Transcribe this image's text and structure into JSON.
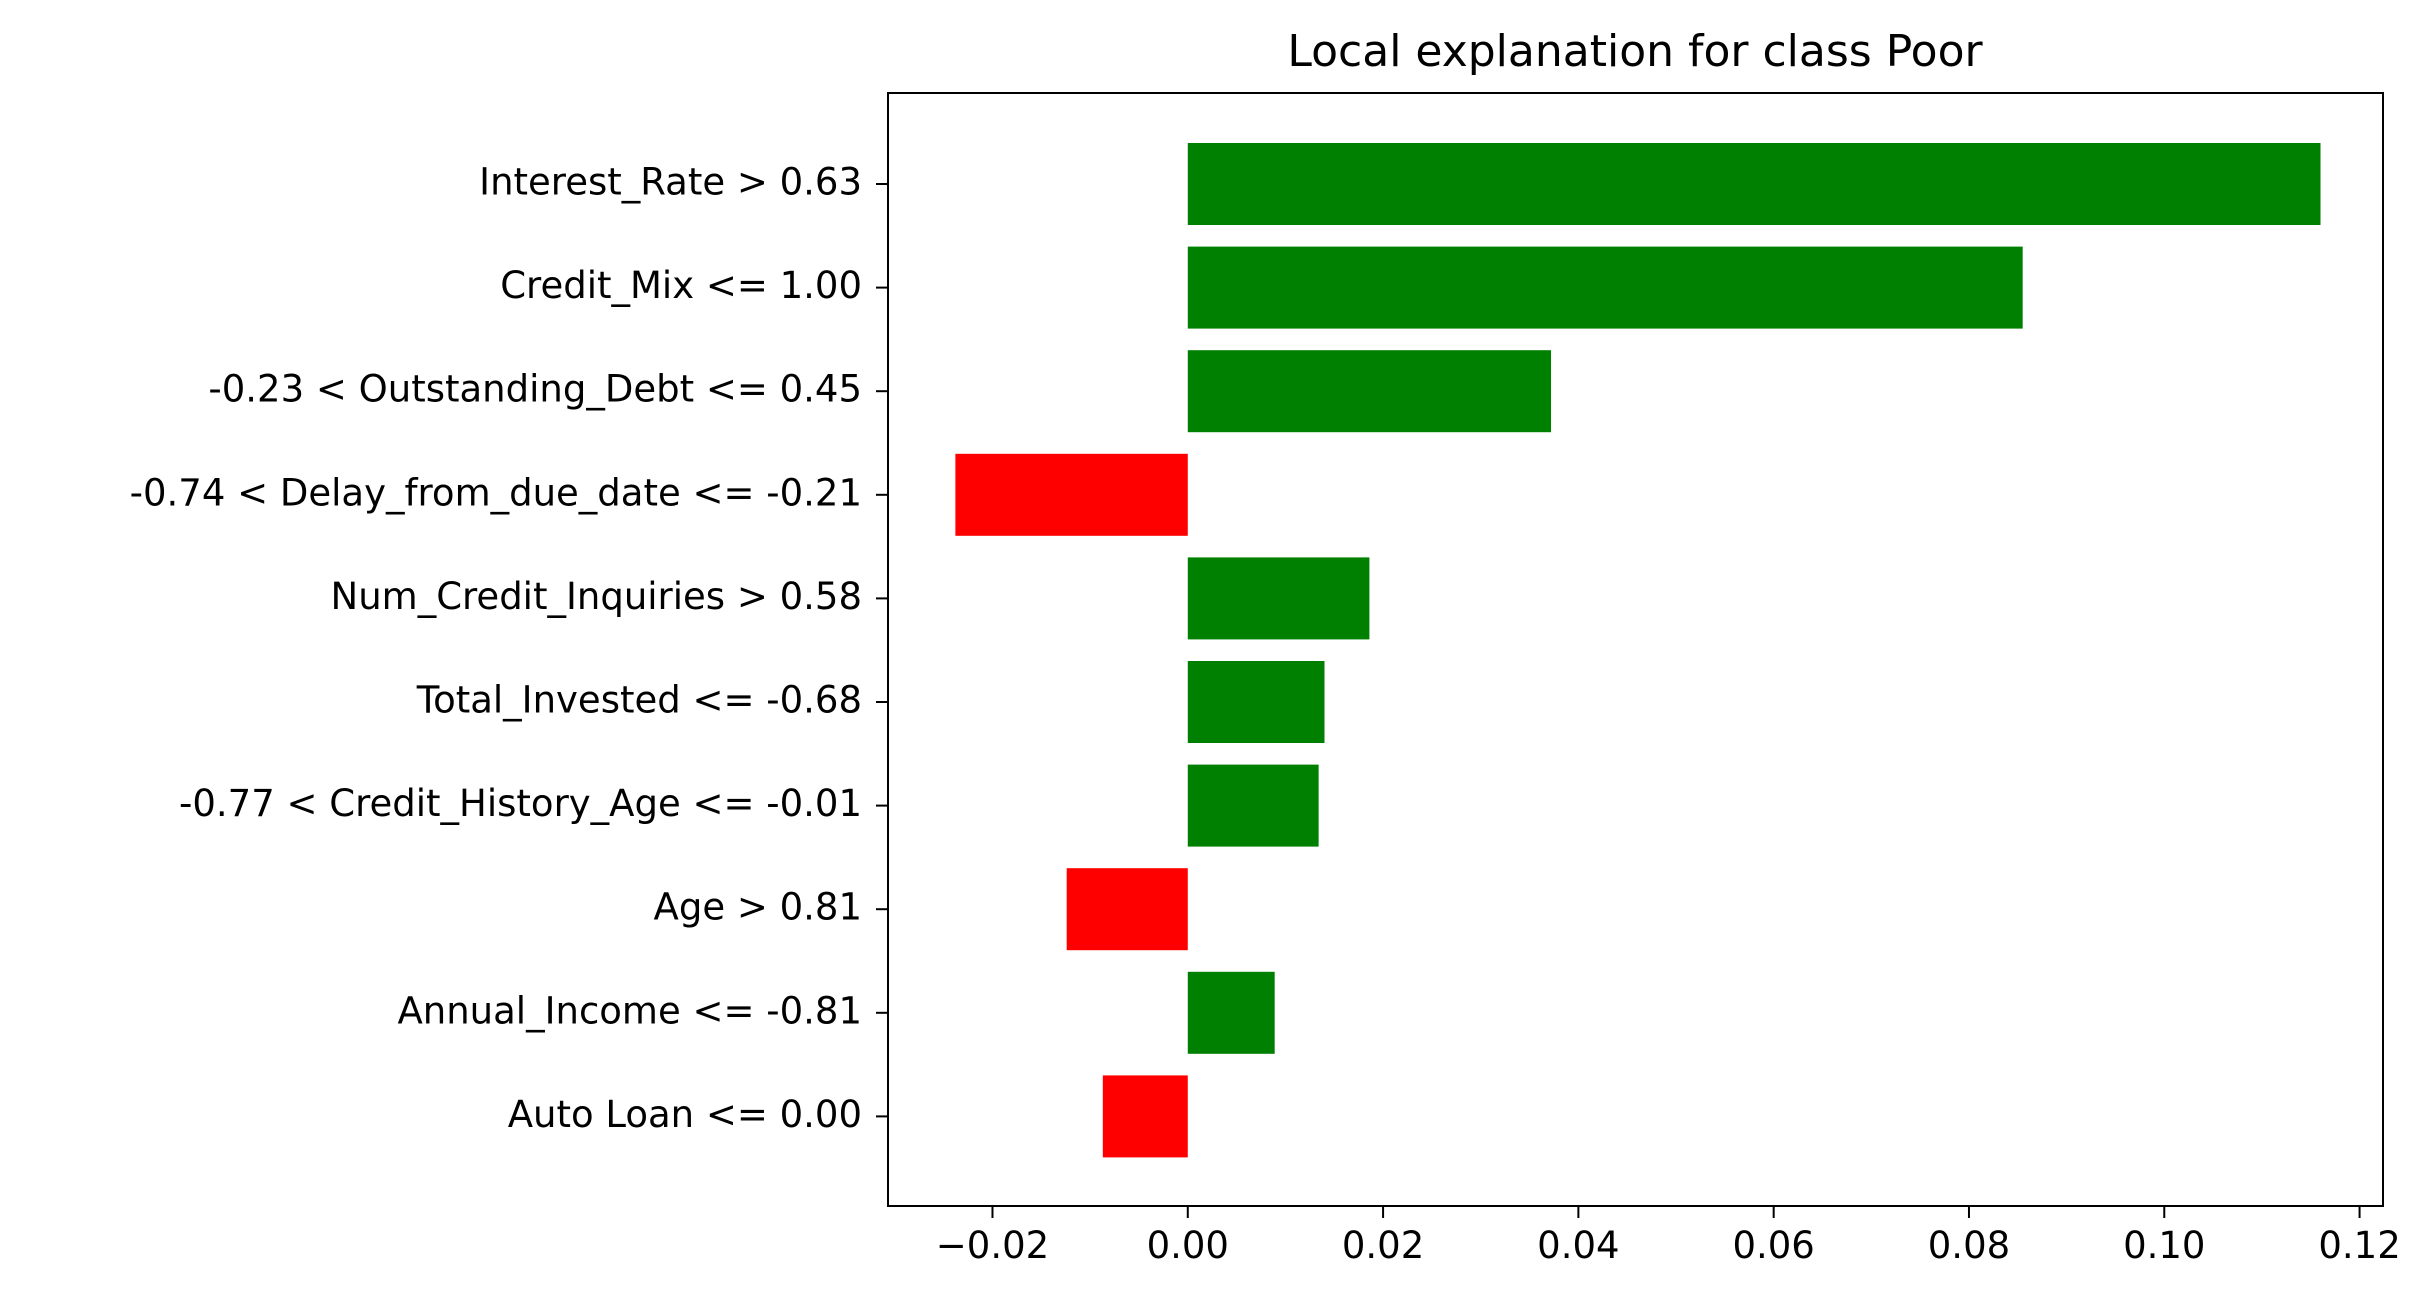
{
  "chart_data": {
    "type": "bar",
    "orientation": "horizontal",
    "title": "Local explanation for class Poor",
    "xlabel": "",
    "ylabel": "",
    "xlim": [
      -0.0307,
      0.1224
    ],
    "xticks": [
      -0.02,
      0.0,
      0.02,
      0.04,
      0.06,
      0.08,
      0.1,
      0.12
    ],
    "xtick_labels": [
      "−0.02",
      "0.00",
      "0.02",
      "0.04",
      "0.06",
      "0.08",
      "0.10",
      "0.12"
    ],
    "grid": false,
    "legend": "none",
    "positive_color": "#008000",
    "negative_color": "#ff0000",
    "categories": [
      "Interest_Rate > 0.63",
      "Credit_Mix <= 1.00",
      "-0.23 < Outstanding_Debt <= 0.45",
      "-0.74 < Delay_from_due_date <= -0.21",
      "Num_Credit_Inquiries > 0.58",
      "Total_Invested <= -0.68",
      "-0.77 < Credit_History_Age <= -0.01",
      "Age > 0.81",
      "Annual_Income <= -0.81",
      "Auto Loan <= 0.00"
    ],
    "values": [
      0.116,
      0.0855,
      0.0372,
      -0.0238,
      0.0186,
      0.014,
      0.0134,
      -0.0124,
      0.0089,
      -0.0087
    ]
  }
}
